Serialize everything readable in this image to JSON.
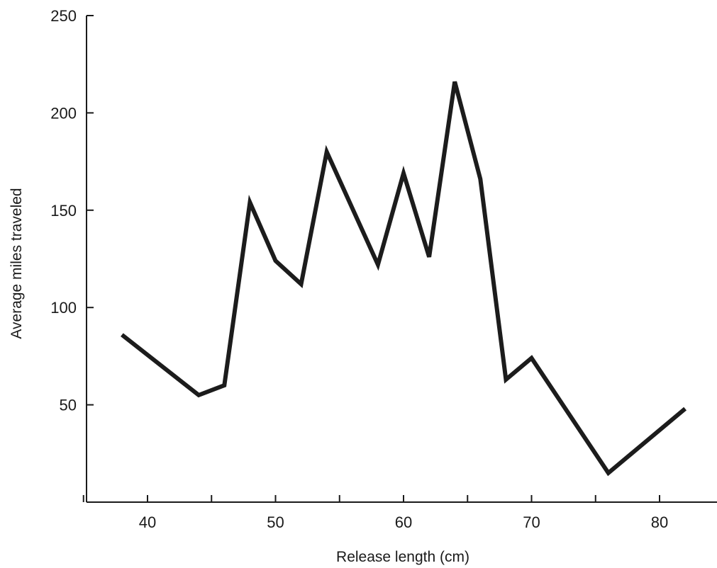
{
  "chart_data": {
    "type": "line",
    "title": "",
    "xlabel": "Release length (cm)",
    "ylabel": "Average miles traveled",
    "xlim": [
      33,
      82
    ],
    "ylim": [
      0,
      250
    ],
    "x_ticks": [
      40,
      50,
      60,
      70,
      80
    ],
    "y_ticks": [
      50,
      100,
      150,
      200,
      250
    ],
    "grid": false,
    "line_color": "#1c1c1c",
    "series": [
      {
        "x": [
          38,
          44,
          46,
          48,
          50,
          52,
          54,
          58,
          60,
          62,
          64,
          66,
          68,
          70,
          76,
          82
        ],
        "y": [
          86,
          55,
          60,
          154,
          124,
          112,
          180,
          122,
          169,
          126,
          216,
          166,
          63,
          74,
          15,
          48
        ]
      }
    ]
  }
}
